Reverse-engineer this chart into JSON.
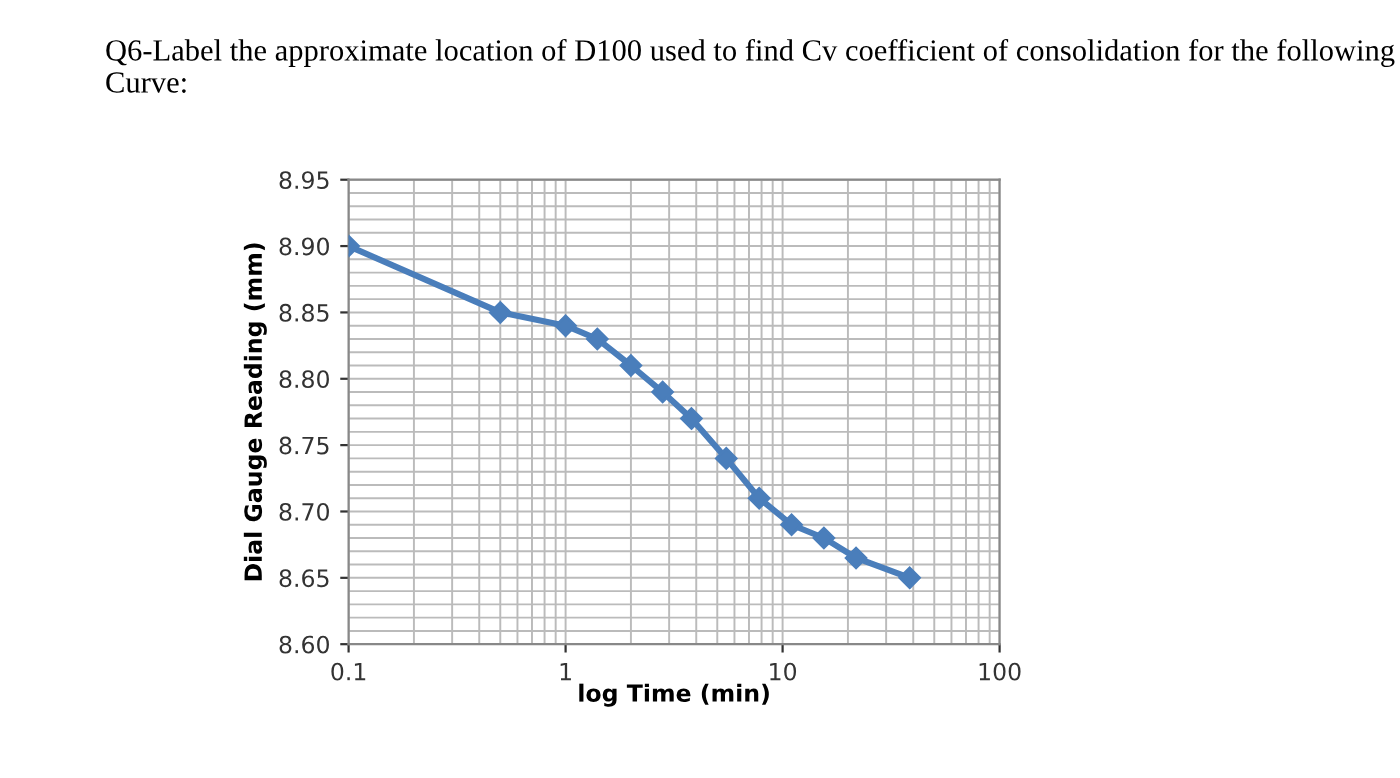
{
  "chart_data": {
    "type": "line",
    "title": "Q6-Label the approximate location of D100 used to find Cv coefficient of consolidation for the following Curve:",
    "xlabel": "log Time (min)",
    "ylabel": "Dial Gauge Reading (mm)",
    "x": [
      0.1,
      0.5,
      1,
      1.4,
      2,
      2.8,
      3.8,
      5.5,
      7.8,
      11,
      15.5,
      21.8,
      38.5
    ],
    "series": [
      {
        "color": "#4a7ebb",
        "values": [
          8.9,
          8.85,
          8.84,
          8.83,
          8.81,
          8.79,
          8.77,
          8.74,
          8.71,
          8.69,
          8.68,
          8.665,
          8.65
        ]
      }
    ],
    "log": "x",
    "xlim": [
      0.1,
      100
    ],
    "xticks": [
      0.1,
      1,
      10,
      100
    ],
    "ylim": [
      8.6,
      8.95
    ],
    "yticks": [
      {
        "value": 8.6,
        "label": "8.60"
      },
      {
        "value": 8.65,
        "label": "8.65"
      },
      {
        "value": 8.7,
        "label": "8.70"
      },
      {
        "value": 8.75,
        "label": "8.75"
      },
      {
        "value": 8.8,
        "label": "8.80"
      },
      {
        "value": 8.85,
        "label": "8.85"
      },
      {
        "value": 8.9,
        "label": "8.90"
      },
      {
        "value": 8.95,
        "label": "8.95"
      }
    ],
    "grid": true,
    "marker": "diamond",
    "line_style": "solid",
    "legend": false
  }
}
